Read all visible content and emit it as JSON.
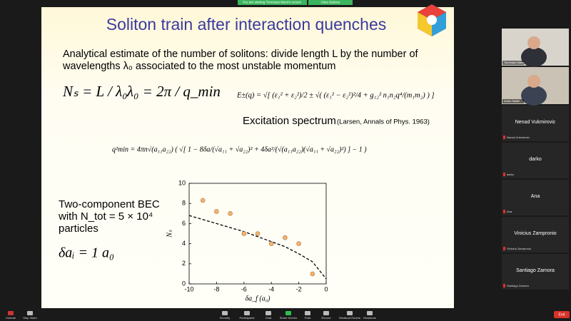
{
  "zoom": {
    "banner": "You are viewing Tommaso Macri's screen",
    "view_options": "View Options",
    "participants": [
      "Tommaso Macrì",
      "Anton Sattel",
      "Nenad Vukmirovic",
      "darko",
      "Ana",
      "Vinicius Zampronio",
      "Santiago Zamora"
    ],
    "toolbar": [
      "Unmute",
      "Stop Video",
      "Security",
      "Participants",
      "Chat",
      "Share Screen",
      "Polls",
      "Record",
      "Breakout Rooms",
      "Reactions"
    ],
    "end": "End"
  },
  "slide": {
    "title": "Soliton train after interaction quenches",
    "intro": [
      "Analytical estimate of the number of solitons: divide length L by the number of",
      "wavelengths λ₀ associated to the most unstable momentum"
    ],
    "formula_ns": "Nₛ = L / λ₀",
    "formula_lambda": "λ₀ = 2π / q_min",
    "formula_energy": "E±(q) = √[ (ε₁² + ε₂²)/2 ± √( (ε₁² − ε₂²)²/4 + g₁₂² n₁n₂q⁴/(m₁m₂) ) ]",
    "spectrum": "Excitation spectrum",
    "reference": "(Larsen, Annals of Phys. 1963)",
    "formula_q": "q²min = 4πn√(a₁₁a₂₂) ( √[ 1 − 8δa/(√a₁₁ + √a₂₂)² + 4δa²/(√(a₁₁a₂₂)(√a₁₁ + √a₂₂)²) ] − 1 )",
    "bec": [
      "Two-component BEC",
      "with  N_tot = 5 × 10⁴",
      "particles"
    ],
    "delta": "δaᵢ = 1 a₀",
    "chart": {
      "type": "scatter",
      "xlabel": "δa_f (a₀)",
      "ylabel": "Nₛ",
      "color": "#f2b272",
      "x": [
        -9,
        -8,
        -7,
        -6,
        -5,
        -4,
        -3,
        -2,
        -1
      ],
      "y": [
        8.3,
        7.2,
        7.0,
        5.0,
        5.0,
        4.0,
        4.6,
        4.0,
        1.0
      ],
      "curve": {
        "x": [
          -10,
          -9,
          -8,
          -7,
          -6,
          -5,
          -4,
          -3,
          -2,
          -1,
          0
        ],
        "y": [
          6.8,
          6.4,
          6.0,
          5.6,
          5.2,
          4.7,
          4.2,
          3.7,
          3.0,
          2.2,
          0.5
        ]
      },
      "xlim": [
        -10,
        0
      ],
      "xticks": [
        -10,
        -8,
        -6,
        -4,
        -2,
        0
      ],
      "ylim": [
        0,
        10
      ],
      "yticks": [
        0,
        2,
        4,
        6,
        8,
        10
      ]
    }
  }
}
